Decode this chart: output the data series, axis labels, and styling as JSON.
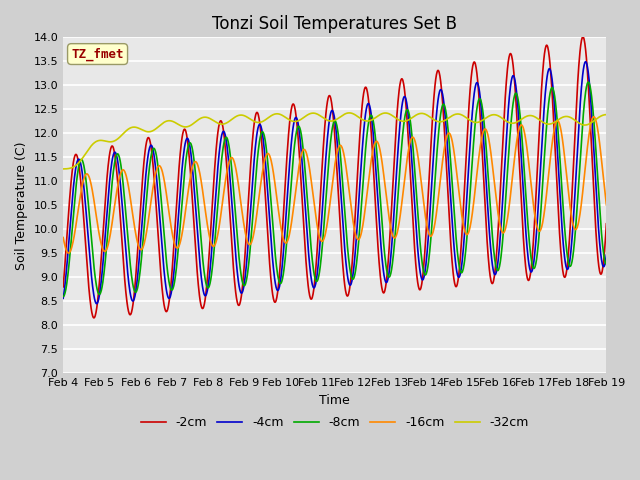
{
  "title": "Tonzi Soil Temperatures Set B",
  "xlabel": "Time",
  "ylabel": "Soil Temperature (C)",
  "ylim": [
    7.0,
    14.0
  ],
  "yticks": [
    7.0,
    7.5,
    8.0,
    8.5,
    9.0,
    9.5,
    10.0,
    10.5,
    11.0,
    11.5,
    12.0,
    12.5,
    13.0,
    13.5,
    14.0
  ],
  "xtick_labels": [
    "Feb 4",
    "Feb 5",
    "Feb 6",
    "Feb 7",
    "Feb 8",
    "Feb 9",
    "Feb 10",
    "Feb 11",
    "Feb 12",
    "Feb 13",
    "Feb 14",
    "Feb 15",
    "Feb 16",
    "Feb 17",
    "Feb 18",
    "Feb 19"
  ],
  "legend_labels": [
    "-2cm",
    "-4cm",
    "-8cm",
    "-16cm",
    "-32cm"
  ],
  "line_colors": [
    "#cc0000",
    "#0000cc",
    "#00aa00",
    "#ff8800",
    "#cccc00"
  ],
  "annotation_text": "TZ_fmet",
  "annotation_color": "#990000",
  "annotation_bg": "#ffffcc",
  "annotation_edge": "#999966",
  "background_color": "#e8e8e8",
  "plot_bg": "#e8e8e8",
  "fig_bg": "#d0d0d0",
  "grid_color": "#ffffff",
  "title_fontsize": 12,
  "axis_fontsize": 9,
  "tick_fontsize": 8,
  "legend_fontsize": 9
}
